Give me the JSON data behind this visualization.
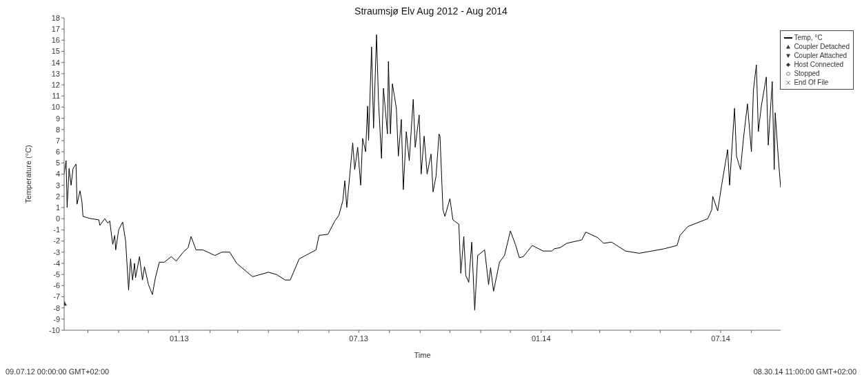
{
  "chart_data": {
    "type": "line",
    "title": "Straumsjø Elv Aug 2012 - Aug 2014",
    "xlabel": "Time",
    "ylabel": "Temperature (°C)",
    "xlim": [
      "2012-09-07",
      "2014-08-30T11:00"
    ],
    "annotations": [
      "09.07.12 00:00:00 GMT+02:00",
      "08.30.14 11:00:00 GMT+02:00"
    ],
    "xticks": [
      {
        "value": "2012-10-01",
        "label": null
      },
      {
        "value": "2012-11-01",
        "label": null
      },
      {
        "value": "2012-12-01",
        "label": null
      },
      {
        "value": "2013-01-01",
        "label": "01.13"
      },
      {
        "value": "2013-02-01",
        "label": null
      },
      {
        "value": "2013-03-01",
        "label": null
      },
      {
        "value": "2013-04-01",
        "label": null
      },
      {
        "value": "2013-05-01",
        "label": null
      },
      {
        "value": "2013-06-01",
        "label": null
      },
      {
        "value": "2013-07-01",
        "label": "07.13"
      },
      {
        "value": "2013-08-01",
        "label": null
      },
      {
        "value": "2013-09-01",
        "label": null
      },
      {
        "value": "2013-10-01",
        "label": null
      },
      {
        "value": "2013-11-01",
        "label": null
      },
      {
        "value": "2013-12-01",
        "label": null
      },
      {
        "value": "2014-01-01",
        "label": "01.14"
      },
      {
        "value": "2014-02-01",
        "label": null
      },
      {
        "value": "2014-03-01",
        "label": null
      },
      {
        "value": "2014-04-01",
        "label": null
      },
      {
        "value": "2014-05-01",
        "label": null
      },
      {
        "value": "2014-06-01",
        "label": null
      },
      {
        "value": "2014-07-01",
        "label": "07.14"
      },
      {
        "value": "2014-08-01",
        "label": null
      }
    ],
    "ylim": [
      -10,
      18
    ],
    "yticks": [
      -10,
      -9,
      -8,
      -7,
      -6,
      -5,
      -4,
      -3,
      -2,
      -1,
      0,
      1,
      2,
      3,
      4,
      5,
      6,
      7,
      8,
      9,
      10,
      11,
      12,
      13,
      14,
      15,
      16,
      17,
      18
    ],
    "grid": false,
    "legend": "top right",
    "line_style": "solid",
    "series": [
      {
        "name": "Temp, °C",
        "color": "#000000",
        "marker": "none",
        "x": [
          "2012-09-07",
          "2012-09-09",
          "2012-09-10",
          "2012-09-12",
          "2012-09-14",
          "2012-09-16",
          "2012-09-19",
          "2012-09-20",
          "2012-09-23",
          "2012-09-25",
          "2012-09-26",
          "2012-10-04",
          "2012-10-12",
          "2012-10-13",
          "2012-10-18",
          "2012-10-21",
          "2012-10-23",
          "2012-10-26",
          "2012-10-28",
          "2012-10-29",
          "2012-11-01",
          "2012-11-05",
          "2012-11-08",
          "2012-11-11",
          "2012-11-13",
          "2012-11-15",
          "2012-11-17",
          "2012-11-18",
          "2012-11-22",
          "2012-11-25",
          "2012-11-27",
          "2012-12-01",
          "2012-12-05",
          "2012-12-08",
          "2012-12-12",
          "2012-12-17",
          "2012-12-24",
          "2012-12-29",
          "2013-01-05",
          "2013-01-10",
          "2013-01-13",
          "2013-01-18",
          "2013-01-25",
          "2013-02-06",
          "2013-02-13",
          "2013-02-21",
          "2013-02-28",
          "2013-03-16",
          "2013-04-01",
          "2013-04-09",
          "2013-04-18",
          "2013-04-23",
          "2013-05-02",
          "2013-05-19",
          "2013-05-22",
          "2013-05-31",
          "2013-06-07",
          "2013-06-11",
          "2013-06-15",
          "2013-06-17",
          "2013-06-19",
          "2013-06-25",
          "2013-06-27",
          "2013-06-30",
          "2013-07-03",
          "2013-07-05",
          "2013-07-08",
          "2013-07-10",
          "2013-07-11",
          "2013-07-14",
          "2013-07-16",
          "2013-07-19",
          "2013-07-21",
          "2013-07-24",
          "2013-07-26",
          "2013-07-30",
          "2013-07-31",
          "2013-08-02",
          "2013-08-04",
          "2013-08-08",
          "2013-08-10",
          "2013-08-13",
          "2013-08-15",
          "2013-08-18",
          "2013-08-21",
          "2013-08-25",
          "2013-08-27",
          "2013-08-31",
          "2013-09-02",
          "2013-09-05",
          "2013-09-08",
          "2013-09-12",
          "2013-09-14",
          "2013-09-17",
          "2013-09-20",
          "2013-09-21",
          "2013-09-23",
          "2013-09-24",
          "2013-09-26",
          "2013-10-01",
          "2013-10-04",
          "2013-10-10",
          "2013-10-12",
          "2013-10-15",
          "2013-10-17",
          "2013-10-20",
          "2013-10-23",
          "2013-10-26",
          "2013-10-29",
          "2013-11-05",
          "2013-11-09",
          "2013-11-11",
          "2013-11-14",
          "2013-11-20",
          "2013-11-25",
          "2013-12-01",
          "2013-12-06",
          "2013-12-10",
          "2013-12-14",
          "2013-12-23",
          "2014-01-03",
          "2014-01-12",
          "2014-01-14",
          "2014-01-20",
          "2014-01-27",
          "2014-02-11",
          "2014-02-15",
          "2014-02-27",
          "2014-03-05",
          "2014-03-13",
          "2014-03-27",
          "2014-04-10",
          "2014-05-05",
          "2014-05-18",
          "2014-05-21",
          "2014-05-29",
          "2014-06-18",
          "2014-06-22",
          "2014-06-23",
          "2014-06-28",
          "2014-07-02",
          "2014-07-08",
          "2014-07-10",
          "2014-07-15",
          "2014-07-17",
          "2014-07-21",
          "2014-07-24",
          "2014-07-28",
          "2014-08-01",
          "2014-08-03",
          "2014-08-06",
          "2014-08-08",
          "2014-08-11",
          "2014-08-16",
          "2014-08-18",
          "2014-08-22",
          "2014-08-24",
          "2014-08-25",
          "2014-08-28",
          "2014-08-30T11:00"
        ],
        "values": [
          4.0,
          5.2,
          1.0,
          4.5,
          3.0,
          4.5,
          4.9,
          1.3,
          2.5,
          1.5,
          0.2,
          0.0,
          -0.1,
          -0.6,
          0.0,
          -0.4,
          -0.2,
          -2.3,
          -1.5,
          -2.8,
          -1.0,
          -0.3,
          -2.0,
          -6.4,
          -3.6,
          -5.5,
          -4.0,
          -5.3,
          -3.4,
          -5.5,
          -4.3,
          -5.9,
          -6.8,
          -5.3,
          -3.9,
          -3.9,
          -3.4,
          -3.8,
          -3.0,
          -2.6,
          -1.6,
          -2.8,
          -2.8,
          -3.3,
          -3.0,
          -3.0,
          -4.0,
          -5.2,
          -4.8,
          -5.0,
          -5.5,
          -5.5,
          -3.6,
          -2.8,
          -1.5,
          -1.4,
          -0.2,
          0.3,
          1.6,
          3.4,
          1.0,
          6.8,
          4.4,
          6.4,
          3.0,
          7.2,
          6.0,
          10.1,
          7.0,
          15.4,
          8.1,
          16.5,
          10.5,
          5.4,
          11.7,
          7.6,
          14.1,
          7.6,
          12.1,
          9.9,
          5.6,
          8.9,
          2.6,
          7.8,
          5.2,
          10.7,
          6.4,
          9.3,
          4.0,
          7.4,
          4.0,
          5.8,
          2.4,
          3.8,
          7.6,
          7.4,
          3.0,
          0.8,
          0.2,
          1.8,
          -0.1,
          -0.5,
          -4.9,
          -1.6,
          -5.1,
          -5.7,
          -2.1,
          -8.2,
          -3.3,
          -2.8,
          -5.9,
          -4.4,
          -6.5,
          -3.9,
          -3.3,
          -1.1,
          -2.3,
          -3.5,
          -3.4,
          -2.4,
          -2.9,
          -2.9,
          -2.7,
          -2.6,
          -2.2,
          -1.9,
          -1.2,
          -1.7,
          -2.2,
          -2.1,
          -2.9,
          -3.1,
          -2.7,
          -2.4,
          -1.5,
          -0.7,
          0.0,
          0.8,
          2.0,
          0.7,
          3.0,
          6.2,
          3.0,
          9.9,
          5.6,
          4.4,
          7.2,
          10.3,
          6.0,
          11.5,
          13.8,
          7.8,
          10.1,
          12.7,
          6.6,
          12.3,
          4.4,
          9.5,
          5.6,
          2.8
        ]
      },
      {
        "name": "Coupler Detached",
        "type": "scatter",
        "color": "#333333",
        "marker": "triangle",
        "x": [
          "2012-09-07"
        ],
        "values": [
          -7.6
        ]
      },
      {
        "name": "Coupler Attached",
        "type": "scatter",
        "color": "#333333",
        "marker": "triangle_down"
      },
      {
        "name": "Host Connected",
        "type": "scatter",
        "color": "#333333",
        "marker": "diamond"
      },
      {
        "name": "Stopped",
        "type": "scatter",
        "color": "#777777",
        "marker": "circle"
      },
      {
        "name": "End Of File",
        "type": "scatter",
        "color": "#777777",
        "marker": "cross"
      }
    ]
  }
}
